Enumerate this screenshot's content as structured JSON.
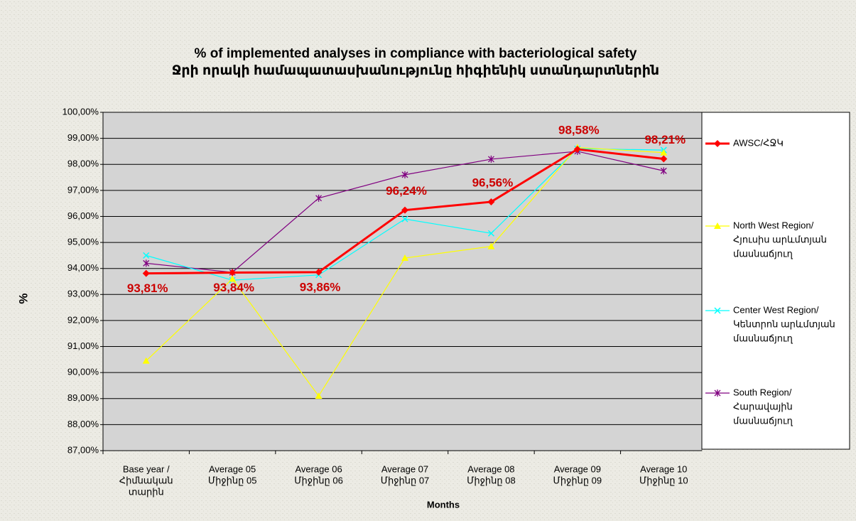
{
  "chart_data": {
    "type": "line",
    "title": [
      "% of implemented analyses in compliance with  bacteriological safety",
      "Ջրի որակի համապատասխանությունը հիգիենիկ ստանդարտներին"
    ],
    "y_label": "%",
    "x_label": "Months",
    "categories": [
      [
        "Base year /",
        "Հիմնական",
        "տարին"
      ],
      [
        "Average 05",
        "Միջինը 05"
      ],
      [
        "Average 06",
        "Միջինը 06"
      ],
      [
        "Average 07",
        "Միջինը 07"
      ],
      [
        "Average 08",
        "Միջինը 08"
      ],
      [
        "Average 09",
        "Միջինը 09"
      ],
      [
        "Average 10",
        "Միջինը 10"
      ]
    ],
    "series": [
      {
        "name": [
          "AWSC/ՀՋԿ"
        ],
        "color": "#ff0000",
        "marker": "diamond",
        "values": [
          93.81,
          93.84,
          93.86,
          96.24,
          96.56,
          98.58,
          98.21
        ],
        "value_labels": [
          "93,81%",
          "93,84%",
          "93,86%",
          "96,24%",
          "96,56%",
          "98,58%",
          "98,21%"
        ]
      },
      {
        "name": [
          "North West Region/",
          "Հյուսիս արևմտյան",
          "մասնաճյուղ"
        ],
        "color": "#ffff00",
        "marker": "triangle",
        "values": [
          90.45,
          93.6,
          89.1,
          94.4,
          94.85,
          98.65,
          98.45
        ]
      },
      {
        "name": [
          "Center West Region/",
          "Կենտրոն արևմտյան",
          "մասնաճյուղ"
        ],
        "color": "#00ffff",
        "marker": "x",
        "values": [
          94.5,
          93.55,
          93.75,
          95.9,
          95.35,
          98.6,
          98.55
        ]
      },
      {
        "name": [
          "South Region/",
          "Հարավային",
          "մասնաճյուղ"
        ],
        "color": "#800080",
        "marker": "star",
        "values": [
          94.2,
          93.85,
          96.7,
          97.6,
          98.2,
          98.5,
          97.75
        ]
      }
    ],
    "ylim": [
      87,
      100
    ],
    "yticks": [
      {
        "value": 87,
        "label": "87,00%"
      },
      {
        "value": 88,
        "label": "88,00%"
      },
      {
        "value": 89,
        "label": "89,00%"
      },
      {
        "value": 90,
        "label": "90,00%"
      },
      {
        "value": 91,
        "label": "91,00%"
      },
      {
        "value": 92,
        "label": "92,00%"
      },
      {
        "value": 93,
        "label": "93,00%"
      },
      {
        "value": 94,
        "label": "94,00%"
      },
      {
        "value": 95,
        "label": "95,00%"
      },
      {
        "value": 96,
        "label": "96,00%"
      },
      {
        "value": 97,
        "label": "97,00%"
      },
      {
        "value": 98,
        "label": "98,00%"
      },
      {
        "value": 99,
        "label": "99,00%"
      },
      {
        "value": 100,
        "label": "100,00%"
      }
    ],
    "grid": true,
    "legend": "right"
  }
}
